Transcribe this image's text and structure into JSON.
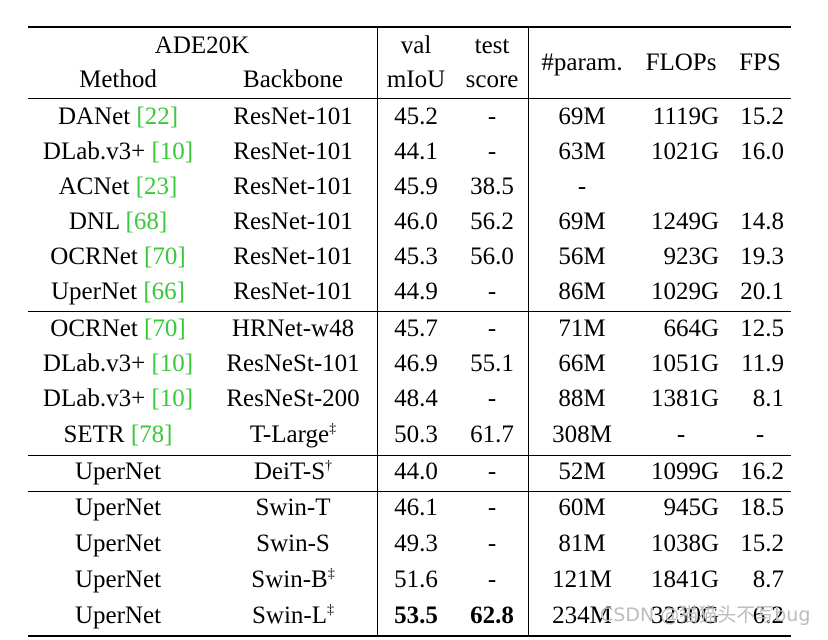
{
  "header": {
    "dataset": "ADE20K",
    "method": "Method",
    "backbone": "Backbone",
    "val_top": "val",
    "val_bottom": "mIoU",
    "test_top": "test",
    "test_bottom": "score",
    "param": "#param.",
    "flops": "FLOPs",
    "fps": "FPS"
  },
  "rows": [
    {
      "method": "DANet ",
      "cite": "[22]",
      "backbone": "ResNet-101",
      "sup": "",
      "val": "45.2",
      "test": "-",
      "param": "69M",
      "flops": "1119G",
      "fps": "15.2"
    },
    {
      "method": "DLab.v3+ ",
      "cite": "[10]",
      "backbone": "ResNet-101",
      "sup": "",
      "val": "44.1",
      "test": "-",
      "param": "63M",
      "flops": "1021G",
      "fps": "16.0"
    },
    {
      "method": "ACNet ",
      "cite": "[23]",
      "backbone": "ResNet-101",
      "sup": "",
      "val": "45.9",
      "test": "38.5",
      "param": "-",
      "flops": "",
      "fps": ""
    },
    {
      "method": "DNL ",
      "cite": "[68]",
      "backbone": "ResNet-101",
      "sup": "",
      "val": "46.0",
      "test": "56.2",
      "param": "69M",
      "flops": "1249G",
      "fps": "14.8"
    },
    {
      "method": "OCRNet ",
      "cite": "[70]",
      "backbone": "ResNet-101",
      "sup": "",
      "val": "45.3",
      "test": "56.0",
      "param": "56M",
      "flops": "923G",
      "fps": "19.3"
    },
    {
      "method": "UperNet ",
      "cite": "[66]",
      "backbone": "ResNet-101",
      "sup": "",
      "val": "44.9",
      "test": "-",
      "param": "86M",
      "flops": "1029G",
      "fps": "20.1"
    },
    {
      "method": "OCRNet ",
      "cite": "[70]",
      "backbone": "HRNet-w48",
      "sup": "",
      "val": "45.7",
      "test": "-",
      "param": "71M",
      "flops": "664G",
      "fps": "12.5"
    },
    {
      "method": "DLab.v3+ ",
      "cite": "[10]",
      "backbone": "ResNeSt-101",
      "sup": "",
      "val": "46.9",
      "test": "55.1",
      "param": "66M",
      "flops": "1051G",
      "fps": "11.9"
    },
    {
      "method": "DLab.v3+ ",
      "cite": "[10]",
      "backbone": "ResNeSt-200",
      "sup": "",
      "val": "48.4",
      "test": "-",
      "param": "88M",
      "flops": "1381G",
      "fps": "8.1"
    },
    {
      "method": "SETR ",
      "cite": "[78]",
      "backbone": "T-Large",
      "sup": "‡",
      "val": "50.3",
      "test": "61.7",
      "param": "308M",
      "flops": "-",
      "fps": "-"
    },
    {
      "method": "UperNet",
      "cite": "",
      "backbone": "DeiT-S",
      "sup": "†",
      "val": "44.0",
      "test": "-",
      "param": "52M",
      "flops": "1099G",
      "fps": "16.2"
    },
    {
      "method": "UperNet",
      "cite": "",
      "backbone": "Swin-T",
      "sup": "",
      "val": "46.1",
      "test": "-",
      "param": "60M",
      "flops": "945G",
      "fps": "18.5"
    },
    {
      "method": "UperNet",
      "cite": "",
      "backbone": "Swin-S",
      "sup": "",
      "val": "49.3",
      "test": "-",
      "param": "81M",
      "flops": "1038G",
      "fps": "15.2"
    },
    {
      "method": "UperNet",
      "cite": "",
      "backbone": "Swin-B",
      "sup": "‡",
      "val": "51.6",
      "test": "-",
      "param": "121M",
      "flops": "1841G",
      "fps": "8.7"
    },
    {
      "method": "UperNet",
      "cite": "",
      "backbone": "Swin-L",
      "sup": "‡",
      "val": "53.5",
      "test": "62.8",
      "param": "234M",
      "flops": "3230G",
      "fps": "6.2"
    }
  ],
  "watermark": "CSDN @猫猫头不写bug"
}
